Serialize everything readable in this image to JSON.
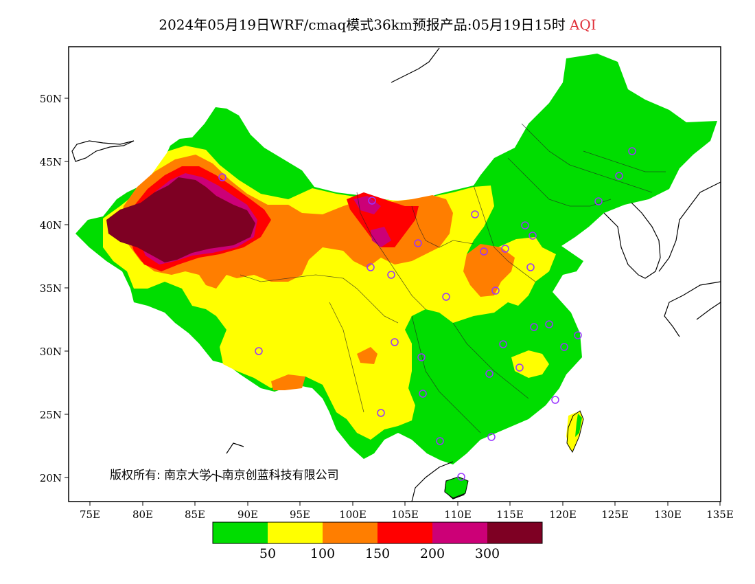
{
  "title": {
    "text": "2024年05月19日WRF/cmaq模式36km预报产品:05月19日15时",
    "variable": "AQI"
  },
  "map": {
    "lon_range": [
      73,
      135
    ],
    "lat_range": [
      18,
      54
    ],
    "lat_ticks": [
      "50N",
      "45N",
      "40N",
      "35N",
      "30N",
      "25N",
      "20N"
    ],
    "lon_ticks": [
      "75E",
      "80E",
      "85E",
      "90E",
      "95E",
      "100E",
      "105E",
      "110E",
      "115E",
      "120E",
      "125E",
      "130E",
      "135E"
    ],
    "copyright": "版权所有: 南京大学 | 南京创蓝科技有限公司"
  },
  "legend": {
    "colors": [
      "#00dd00",
      "#ffff00",
      "#ff7e00",
      "#ff0000",
      "#cc0077",
      "#7e0023"
    ],
    "labels": [
      "50",
      "100",
      "150",
      "200",
      "300"
    ]
  },
  "colors": {
    "good": "#00dd00",
    "moderate": "#ffff00",
    "usg": "#ff7e00",
    "unhealthy": "#ff0000",
    "very_unhealthy": "#cc0077",
    "hazardous": "#7e0023",
    "station_marker": "#9933ff"
  }
}
